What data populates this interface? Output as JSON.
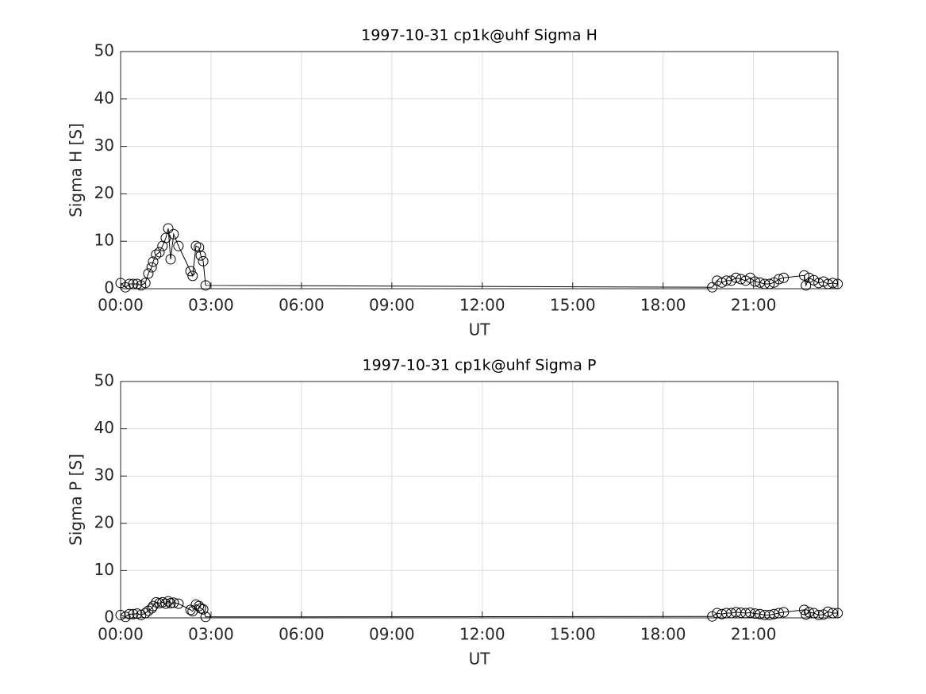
{
  "chart_data": [
    {
      "type": "line",
      "title": "1997-10-31  cp1k@uhf Sigma H",
      "x_label": "UT",
      "y_label": "Sigma H [S]",
      "x": [
        0.0,
        0.16,
        0.29,
        0.42,
        0.55,
        0.68,
        0.82,
        0.92,
        1.03,
        1.08,
        1.18,
        1.29,
        1.39,
        1.5,
        1.58,
        1.66,
        1.76,
        1.92,
        2.32,
        2.39,
        2.5,
        2.6,
        2.66,
        2.74,
        2.82,
        19.63,
        19.79,
        19.95,
        20.1,
        20.26,
        20.42,
        20.58,
        20.74,
        20.89,
        21.05,
        21.21,
        21.37,
        21.53,
        21.68,
        21.84,
        22.0,
        22.68,
        22.74,
        22.84,
        23.0,
        23.16,
        23.32,
        23.47,
        23.63,
        23.79
      ],
      "series": [
        {
          "name": "Sigma H",
          "color": "#000000",
          "values": [
            1.2,
            0.3,
            1.0,
            1.0,
            1.0,
            0.7,
            1.2,
            3.2,
            4.5,
            5.7,
            7.2,
            7.7,
            9.0,
            10.7,
            12.7,
            6.2,
            11.5,
            9.0,
            3.7,
            2.7,
            9.0,
            8.7,
            7.0,
            5.8,
            0.7,
            0.3,
            1.7,
            1.3,
            1.7,
            1.7,
            2.3,
            2.0,
            1.7,
            2.3,
            1.5,
            1.3,
            1.0,
            1.0,
            1.3,
            2.0,
            2.3,
            2.8,
            0.7,
            2.3,
            1.8,
            1.2,
            1.5,
            1.0,
            1.2,
            1.0
          ]
        }
      ],
      "xlim": [
        0,
        23.8
      ],
      "xticks": [
        {
          "value": 0,
          "label": "00:00"
        },
        {
          "value": 3,
          "label": "03:00"
        },
        {
          "value": 6,
          "label": "06:00"
        },
        {
          "value": 9,
          "label": "09:00"
        },
        {
          "value": 12,
          "label": "12:00"
        },
        {
          "value": 15,
          "label": "15:00"
        },
        {
          "value": 18,
          "label": "18:00"
        },
        {
          "value": 21,
          "label": "21:00"
        }
      ],
      "ylim": [
        0,
        50
      ],
      "yticks": [
        0,
        10,
        20,
        30,
        40,
        50
      ],
      "grid": true
    },
    {
      "type": "line",
      "title": "1997-10-31  cp1k@uhf Sigma P",
      "x_label": "UT",
      "y_label": "Sigma P [S]",
      "x": [
        0.0,
        0.16,
        0.29,
        0.42,
        0.55,
        0.68,
        0.82,
        0.92,
        1.03,
        1.08,
        1.18,
        1.29,
        1.39,
        1.5,
        1.58,
        1.66,
        1.76,
        1.92,
        2.32,
        2.39,
        2.5,
        2.6,
        2.66,
        2.74,
        2.82,
        19.63,
        19.79,
        19.95,
        20.1,
        20.26,
        20.42,
        20.58,
        20.74,
        20.89,
        21.05,
        21.21,
        21.37,
        21.53,
        21.68,
        21.84,
        22.0,
        22.68,
        22.74,
        22.84,
        23.0,
        23.16,
        23.32,
        23.47,
        23.63,
        23.79
      ],
      "series": [
        {
          "name": "Sigma P",
          "color": "#000000",
          "values": [
            0.6,
            0.2,
            0.8,
            0.8,
            0.9,
            0.6,
            1.0,
            1.5,
            2.0,
            2.5,
            3.3,
            3.1,
            3.3,
            3.0,
            3.5,
            3.1,
            3.2,
            3.0,
            1.7,
            1.4,
            2.8,
            2.5,
            2.0,
            1.8,
            0.2,
            0.3,
            1.0,
            0.8,
            1.0,
            1.0,
            1.2,
            1.1,
            1.0,
            1.1,
            0.9,
            0.8,
            0.6,
            0.6,
            0.8,
            1.0,
            1.2,
            1.7,
            0.7,
            1.2,
            1.0,
            0.6,
            0.7,
            1.3,
            1.0,
            1.0
          ]
        }
      ],
      "xlim": [
        0,
        23.8
      ],
      "xticks": [
        {
          "value": 0,
          "label": "00:00"
        },
        {
          "value": 3,
          "label": "03:00"
        },
        {
          "value": 6,
          "label": "06:00"
        },
        {
          "value": 9,
          "label": "09:00"
        },
        {
          "value": 12,
          "label": "12:00"
        },
        {
          "value": 15,
          "label": "15:00"
        },
        {
          "value": 18,
          "label": "18:00"
        },
        {
          "value": 21,
          "label": "21:00"
        }
      ],
      "ylim": [
        0,
        50
      ],
      "yticks": [
        0,
        10,
        20,
        30,
        40,
        50
      ],
      "grid": true
    }
  ]
}
